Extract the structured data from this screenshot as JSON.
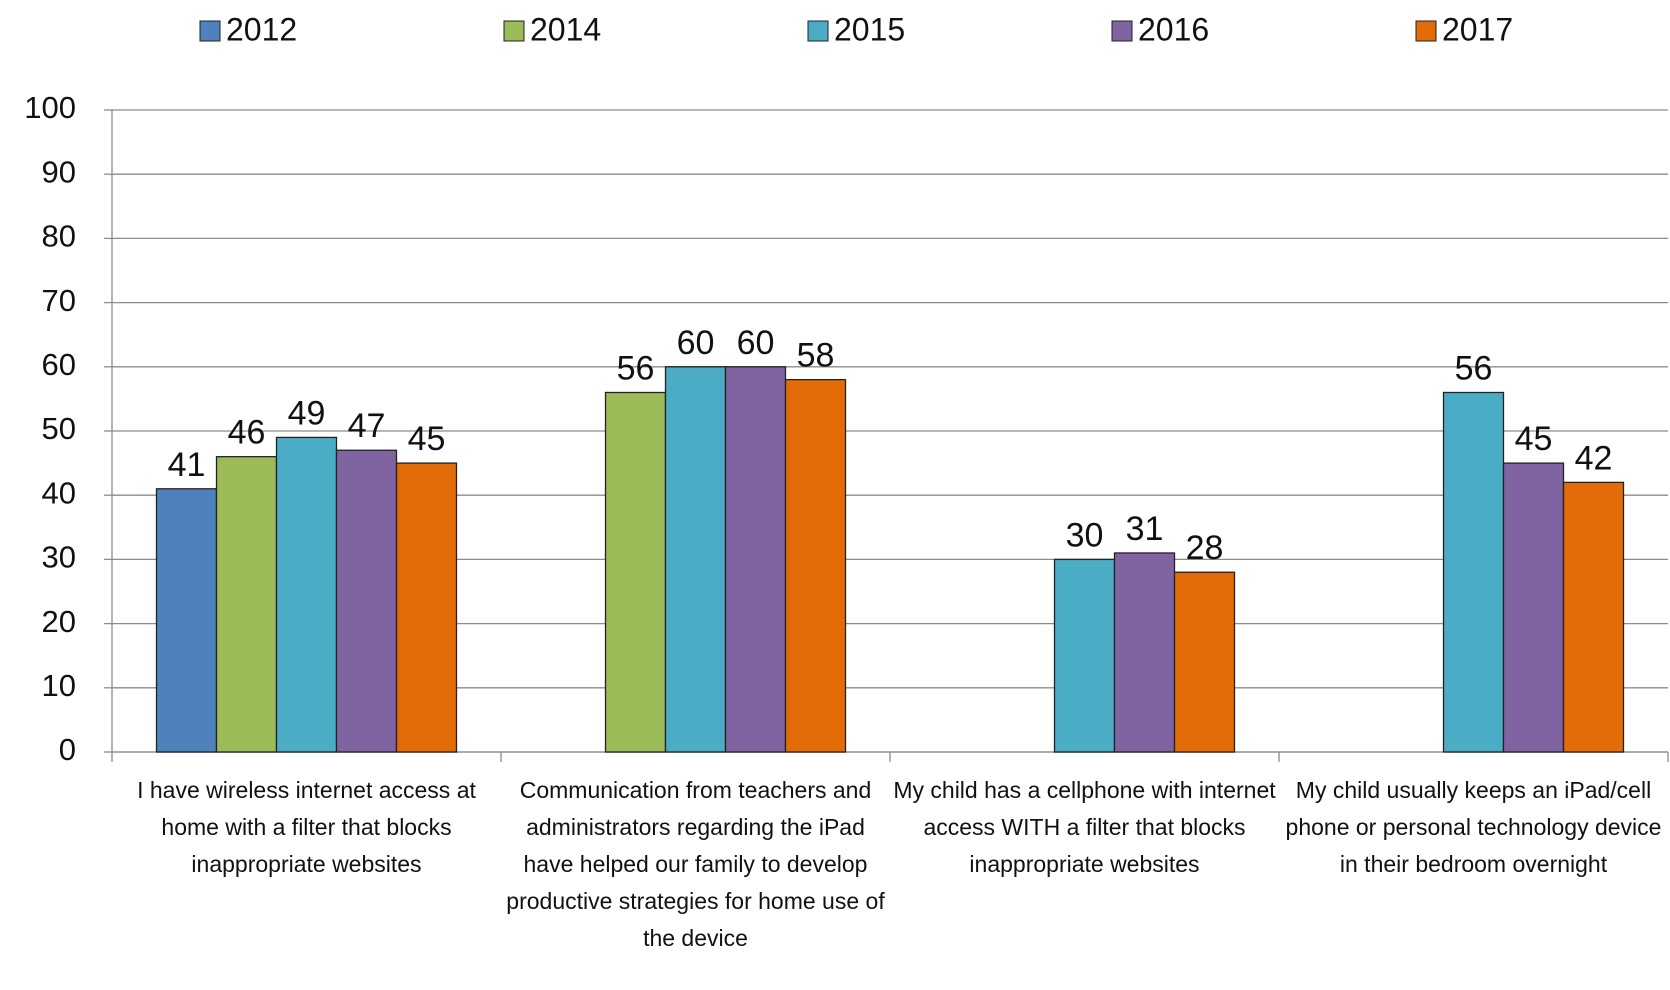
{
  "chart_data": {
    "type": "bar",
    "categories": [
      "I have wireless internet access at home with a filter that blocks inappropriate websites",
      "Communication from teachers and administrators regarding the iPad have helped our family to develop productive strategies for home use of the device",
      "My child has a cellphone with internet access WITH a filter that blocks inappropriate websites",
      "My child usually keeps an iPad/cell phone or personal technology device in their bedroom overnight"
    ],
    "series": [
      {
        "name": "2012",
        "color": "#4f81bd",
        "values": [
          41,
          null,
          null,
          null
        ]
      },
      {
        "name": "2014",
        "color": "#9bbb59",
        "values": [
          46,
          56,
          null,
          null
        ]
      },
      {
        "name": "2015",
        "color": "#4bacc6",
        "values": [
          49,
          60,
          30,
          56
        ]
      },
      {
        "name": "2016",
        "color": "#8064a2",
        "values": [
          47,
          60,
          31,
          45
        ]
      },
      {
        "name": "2017",
        "color": "#e36c09",
        "values": [
          45,
          58,
          28,
          42
        ]
      }
    ],
    "ylim": [
      0,
      100
    ],
    "yticks": [
      0,
      10,
      20,
      30,
      40,
      50,
      60,
      70,
      80,
      90,
      100
    ],
    "grid": true,
    "legend": "top"
  }
}
